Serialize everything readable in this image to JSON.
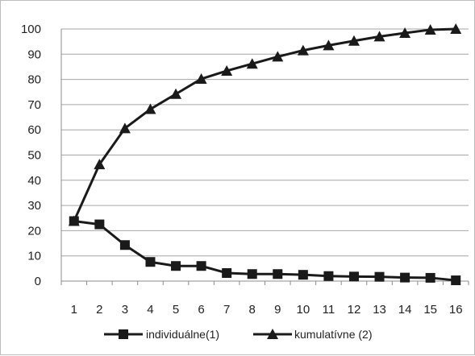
{
  "chart_data": {
    "type": "line",
    "x": [
      1,
      2,
      3,
      4,
      5,
      6,
      7,
      8,
      9,
      10,
      11,
      12,
      13,
      14,
      15,
      16
    ],
    "xticks": [
      "1",
      "2",
      "3",
      "4",
      "5",
      "6",
      "7",
      "8",
      "9",
      "10",
      "11",
      "12",
      "13",
      "14",
      "15",
      "16"
    ],
    "ylim": [
      0,
      100
    ],
    "yticks": [
      0,
      10,
      20,
      30,
      40,
      50,
      60,
      70,
      80,
      90,
      100
    ],
    "grid": true,
    "legend_position": "bottom",
    "series": [
      {
        "name": "individuálne(1)",
        "marker": "square",
        "color": "#1a1a1a",
        "values": [
          23.8,
          22.5,
          14.3,
          7.6,
          6.0,
          6.0,
          3.2,
          2.8,
          2.8,
          2.5,
          2.0,
          1.8,
          1.7,
          1.4,
          1.3,
          0.3
        ]
      },
      {
        "name": "kumulatívne (2)",
        "marker": "triangle",
        "color": "#1a1a1a",
        "values": [
          23.8,
          46.3,
          60.6,
          68.2,
          74.2,
          80.2,
          83.4,
          86.2,
          89.0,
          91.5,
          93.5,
          95.3,
          97.0,
          98.4,
          99.7,
          100.0
        ]
      }
    ]
  }
}
